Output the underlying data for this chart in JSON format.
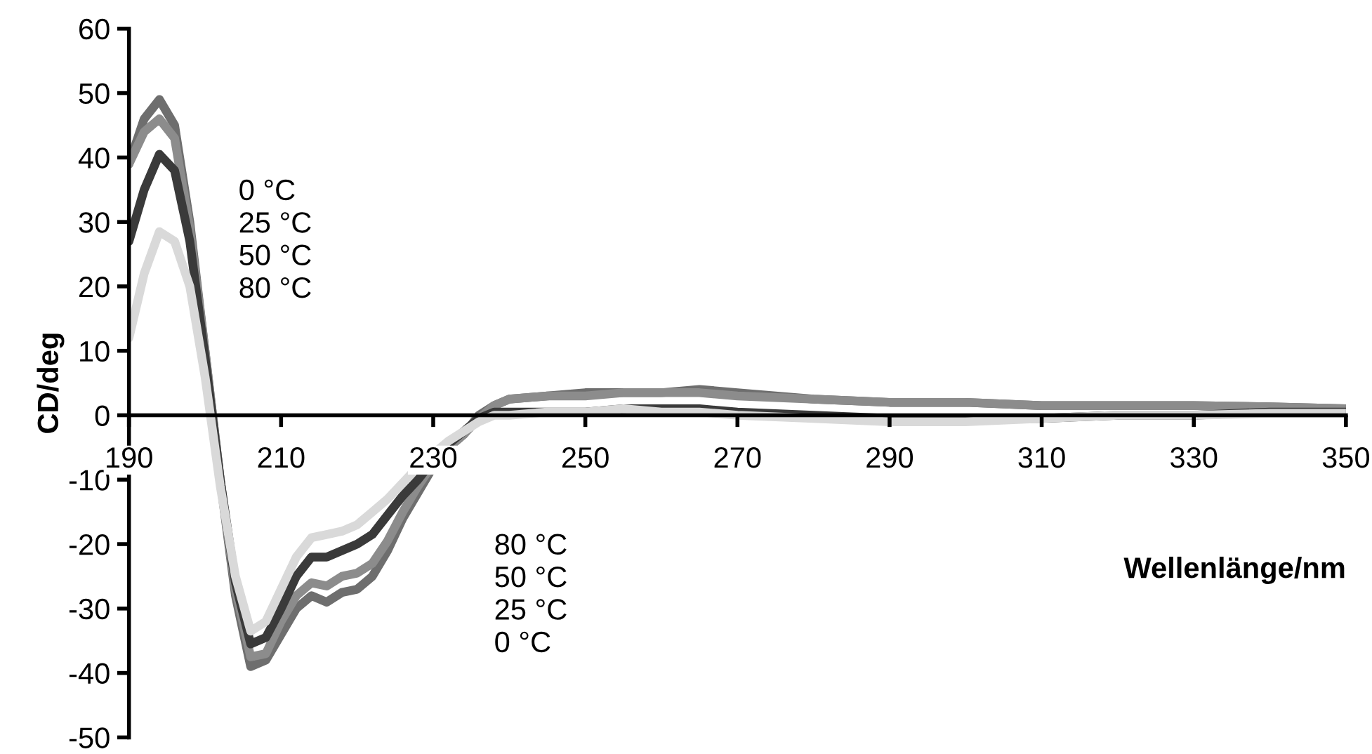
{
  "chart_data": {
    "type": "line",
    "xlabel": "Wellenlänge/nm",
    "ylabel": "CD/deg",
    "x": [
      190,
      192,
      194,
      196,
      198,
      200,
      202,
      204,
      206,
      208,
      210,
      212,
      214,
      216,
      218,
      220,
      222,
      224,
      226,
      228,
      230,
      232,
      234,
      236,
      238,
      240,
      245,
      250,
      255,
      260,
      265,
      270,
      280,
      290,
      300,
      310,
      320,
      330,
      340,
      350
    ],
    "series": [
      {
        "color": "#6e6e6e",
        "values": [
          39,
          46,
          49,
          45,
          30,
          10,
          -10,
          -28,
          -39,
          -38,
          -34,
          -30,
          -28,
          -29,
          -27.5,
          -27,
          -25,
          -21,
          -16,
          -12,
          -8,
          -5,
          -3,
          0,
          1.5,
          2.5,
          3,
          3.5,
          3.5,
          3.5,
          4,
          3.5,
          2.5,
          2,
          2,
          1.5,
          1.5,
          1.5,
          1.3,
          1
        ]
      },
      {
        "color": "#8c8c8c",
        "values": [
          39,
          44,
          46,
          43,
          29,
          10,
          -10,
          -27,
          -37.5,
          -37,
          -32,
          -28,
          -26,
          -26.5,
          -25,
          -24.5,
          -23,
          -19.5,
          -15,
          -11,
          -7.5,
          -5,
          -3,
          -0.5,
          1.5,
          2.5,
          3,
          3,
          3.5,
          3.5,
          3.5,
          3,
          2.5,
          2,
          2,
          1.5,
          1.5,
          1.5,
          1.3,
          1
        ]
      },
      {
        "color": "#3a3a3a",
        "values": [
          27,
          35,
          40.5,
          38,
          27,
          9,
          -10,
          -26,
          -35.5,
          -34.5,
          -30,
          -25,
          -22,
          -22,
          -21,
          -20,
          -18.5,
          -15.5,
          -12.5,
          -10,
          -7,
          -4.5,
          -2.5,
          -0.5,
          0.5,
          0.5,
          0.5,
          0.5,
          1,
          1,
          1,
          0.5,
          0,
          -0.5,
          -0.5,
          -0.5,
          0,
          0,
          0.5,
          0.5
        ]
      },
      {
        "color": "#d9d9d9",
        "values": [
          12,
          22,
          28.5,
          27,
          20,
          6,
          -11,
          -25,
          -33.5,
          -32,
          -27,
          -22,
          -19,
          -18.5,
          -18,
          -17,
          -15,
          -13,
          -10.5,
          -8,
          -6,
          -4,
          -2.5,
          -1,
          0,
          0,
          0.5,
          0.5,
          1,
          0.5,
          0.5,
          0,
          -0.5,
          -1,
          -1,
          -0.5,
          0,
          0,
          0.3,
          0.3
        ]
      }
    ],
    "xlim": [
      190,
      350
    ],
    "xticks": [
      190,
      210,
      230,
      250,
      270,
      290,
      310,
      330,
      350
    ],
    "ylim": [
      -50,
      60
    ],
    "yticks": [
      -50,
      -40,
      -30,
      -20,
      -10,
      0,
      10,
      20,
      30,
      40,
      50,
      60
    ],
    "grid": false,
    "legend": false,
    "marker": "none",
    "line_style": "solid",
    "annotations": [
      "0 °C\n25 °C\n50 °C\n80 °C",
      "80 °C\n50 °C\n25 °C\n0 °C"
    ]
  }
}
